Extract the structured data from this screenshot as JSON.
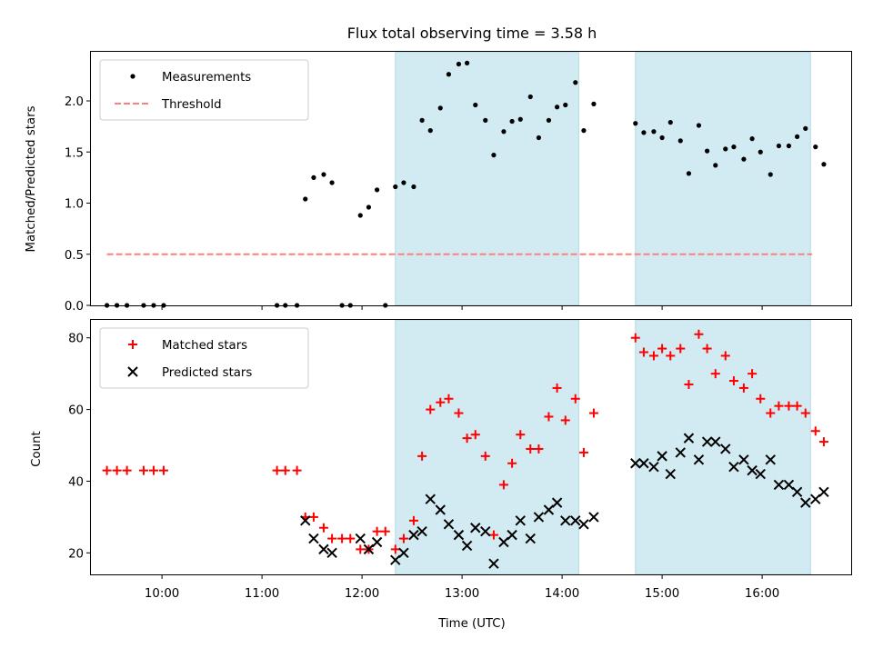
{
  "chart_data": [
    {
      "type": "scatter",
      "title": "Flux total observing time = 3.58 h",
      "xlabel": "",
      "ylabel": "Matched/Predicted stars",
      "ylim": [
        0,
        2.48
      ],
      "xlim_hours": [
        9.29,
        16.89
      ],
      "yticks": [
        {
          "v": 0.0,
          "label": "0.0"
        },
        {
          "v": 0.5,
          "label": "0.5"
        },
        {
          "v": 1.0,
          "label": "1.0"
        },
        {
          "v": 1.5,
          "label": "1.5"
        },
        {
          "v": 2.0,
          "label": "2.0"
        }
      ],
      "legend": {
        "placement": "upper-left",
        "entries": [
          {
            "label": "Measurements",
            "marker": "dot",
            "color": "#000000"
          },
          {
            "label": "Threshold",
            "marker": "dashed-line",
            "color": "#ff7f7f"
          }
        ]
      },
      "threshold": {
        "y": 0.5,
        "x_start": "09:27",
        "x_end": "16:30",
        "color": "#ff7f7f"
      },
      "shaded_regions": [
        {
          "start": "12:20",
          "end": "14:10",
          "color": "#add8e6"
        },
        {
          "start": "14:44",
          "end": "16:29",
          "color": "#add8e6"
        }
      ],
      "series": [
        {
          "name": "Measurements",
          "color": "#000000",
          "points": [
            {
              "x": "09:27",
              "y": 0
            },
            {
              "x": "09:33",
              "y": 0
            },
            {
              "x": "09:39",
              "y": 0
            },
            {
              "x": "09:49",
              "y": 0
            },
            {
              "x": "09:55",
              "y": 0
            },
            {
              "x": "10:01",
              "y": 0
            },
            {
              "x": "11:09",
              "y": 0
            },
            {
              "x": "11:14",
              "y": 0
            },
            {
              "x": "11:21",
              "y": 0
            },
            {
              "x": "11:26",
              "y": 1.04
            },
            {
              "x": "11:31",
              "y": 1.25
            },
            {
              "x": "11:37",
              "y": 1.28
            },
            {
              "x": "11:42",
              "y": 1.2
            },
            {
              "x": "11:48",
              "y": 0
            },
            {
              "x": "11:53",
              "y": 0
            },
            {
              "x": "11:59",
              "y": 0.88
            },
            {
              "x": "12:04",
              "y": 0.96
            },
            {
              "x": "12:09",
              "y": 1.13
            },
            {
              "x": "12:14",
              "y": 0
            },
            {
              "x": "12:20",
              "y": 1.16
            },
            {
              "x": "12:25",
              "y": 1.2
            },
            {
              "x": "12:31",
              "y": 1.16
            },
            {
              "x": "12:36",
              "y": 1.81
            },
            {
              "x": "12:41",
              "y": 1.71
            },
            {
              "x": "12:47",
              "y": 1.93
            },
            {
              "x": "12:52",
              "y": 2.26
            },
            {
              "x": "12:58",
              "y": 2.36
            },
            {
              "x": "13:03",
              "y": 2.37
            },
            {
              "x": "13:08",
              "y": 1.96
            },
            {
              "x": "13:14",
              "y": 1.81
            },
            {
              "x": "13:19",
              "y": 1.47
            },
            {
              "x": "13:25",
              "y": 1.7
            },
            {
              "x": "13:30",
              "y": 1.8
            },
            {
              "x": "13:35",
              "y": 1.82
            },
            {
              "x": "13:41",
              "y": 2.04
            },
            {
              "x": "13:46",
              "y": 1.64
            },
            {
              "x": "13:52",
              "y": 1.81
            },
            {
              "x": "13:57",
              "y": 1.94
            },
            {
              "x": "14:02",
              "y": 1.96
            },
            {
              "x": "14:08",
              "y": 2.18
            },
            {
              "x": "14:13",
              "y": 1.71
            },
            {
              "x": "14:19",
              "y": 1.97
            },
            {
              "x": "14:44",
              "y": 1.78
            },
            {
              "x": "14:49",
              "y": 1.69
            },
            {
              "x": "14:55",
              "y": 1.7
            },
            {
              "x": "15:00",
              "y": 1.64
            },
            {
              "x": "15:05",
              "y": 1.79
            },
            {
              "x": "15:11",
              "y": 1.61
            },
            {
              "x": "15:16",
              "y": 1.29
            },
            {
              "x": "15:22",
              "y": 1.76
            },
            {
              "x": "15:27",
              "y": 1.51
            },
            {
              "x": "15:32",
              "y": 1.37
            },
            {
              "x": "15:38",
              "y": 1.53
            },
            {
              "x": "15:43",
              "y": 1.55
            },
            {
              "x": "15:49",
              "y": 1.43
            },
            {
              "x": "15:54",
              "y": 1.63
            },
            {
              "x": "15:59",
              "y": 1.5
            },
            {
              "x": "16:05",
              "y": 1.28
            },
            {
              "x": "16:10",
              "y": 1.56
            },
            {
              "x": "16:16",
              "y": 1.56
            },
            {
              "x": "16:21",
              "y": 1.65
            },
            {
              "x": "16:26",
              "y": 1.73
            },
            {
              "x": "16:32",
              "y": 1.55
            },
            {
              "x": "16:37",
              "y": 1.38
            }
          ]
        }
      ]
    },
    {
      "type": "scatter",
      "title": "",
      "xlabel": "Time (UTC)",
      "ylabel": "Count",
      "ylim": [
        14,
        85
      ],
      "xlim_hours": [
        9.29,
        16.89
      ],
      "xticks": [
        {
          "v": "10:00",
          "label": "10:00"
        },
        {
          "v": "11:00",
          "label": "11:00"
        },
        {
          "v": "12:00",
          "label": "12:00"
        },
        {
          "v": "13:00",
          "label": "13:00"
        },
        {
          "v": "14:00",
          "label": "14:00"
        },
        {
          "v": "15:00",
          "label": "15:00"
        },
        {
          "v": "16:00",
          "label": "16:00"
        }
      ],
      "yticks": [
        {
          "v": 20,
          "label": "20"
        },
        {
          "v": 40,
          "label": "40"
        },
        {
          "v": 60,
          "label": "60"
        },
        {
          "v": 80,
          "label": "80"
        }
      ],
      "legend": {
        "placement": "upper-left",
        "entries": [
          {
            "label": "Matched stars",
            "marker": "plus",
            "color": "#ff0000"
          },
          {
            "label": "Predicted stars",
            "marker": "cross",
            "color": "#000000"
          }
        ]
      },
      "shaded_regions": [
        {
          "start": "12:20",
          "end": "14:10",
          "color": "#add8e6"
        },
        {
          "start": "14:44",
          "end": "16:29",
          "color": "#add8e6"
        }
      ],
      "series": [
        {
          "name": "Matched stars",
          "marker": "plus",
          "color": "#ff0000",
          "points": [
            {
              "x": "09:27",
              "y": 43
            },
            {
              "x": "09:33",
              "y": 43
            },
            {
              "x": "09:39",
              "y": 43
            },
            {
              "x": "09:49",
              "y": 43
            },
            {
              "x": "09:55",
              "y": 43
            },
            {
              "x": "10:01",
              "y": 43
            },
            {
              "x": "11:09",
              "y": 43
            },
            {
              "x": "11:14",
              "y": 43
            },
            {
              "x": "11:21",
              "y": 43
            },
            {
              "x": "11:26",
              "y": 30
            },
            {
              "x": "11:31",
              "y": 30
            },
            {
              "x": "11:37",
              "y": 27
            },
            {
              "x": "11:42",
              "y": 24
            },
            {
              "x": "11:48",
              "y": 24
            },
            {
              "x": "11:53",
              "y": 24
            },
            {
              "x": "11:59",
              "y": 21
            },
            {
              "x": "12:04",
              "y": 21
            },
            {
              "x": "12:09",
              "y": 26
            },
            {
              "x": "12:14",
              "y": 26
            },
            {
              "x": "12:20",
              "y": 21
            },
            {
              "x": "12:25",
              "y": 24
            },
            {
              "x": "12:31",
              "y": 29
            },
            {
              "x": "12:36",
              "y": 47
            },
            {
              "x": "12:41",
              "y": 60
            },
            {
              "x": "12:47",
              "y": 62
            },
            {
              "x": "12:52",
              "y": 63
            },
            {
              "x": "12:58",
              "y": 59
            },
            {
              "x": "13:03",
              "y": 52
            },
            {
              "x": "13:08",
              "y": 53
            },
            {
              "x": "13:14",
              "y": 47
            },
            {
              "x": "13:19",
              "y": 25
            },
            {
              "x": "13:25",
              "y": 39
            },
            {
              "x": "13:30",
              "y": 45
            },
            {
              "x": "13:35",
              "y": 53
            },
            {
              "x": "13:41",
              "y": 49
            },
            {
              "x": "13:46",
              "y": 49
            },
            {
              "x": "13:52",
              "y": 58
            },
            {
              "x": "13:57",
              "y": 66
            },
            {
              "x": "14:02",
              "y": 57
            },
            {
              "x": "14:08",
              "y": 63
            },
            {
              "x": "14:13",
              "y": 48
            },
            {
              "x": "14:19",
              "y": 59
            },
            {
              "x": "14:44",
              "y": 80
            },
            {
              "x": "14:49",
              "y": 76
            },
            {
              "x": "14:55",
              "y": 75
            },
            {
              "x": "15:00",
              "y": 77
            },
            {
              "x": "15:05",
              "y": 75
            },
            {
              "x": "15:11",
              "y": 77
            },
            {
              "x": "15:16",
              "y": 67
            },
            {
              "x": "15:22",
              "y": 81
            },
            {
              "x": "15:27",
              "y": 77
            },
            {
              "x": "15:32",
              "y": 70
            },
            {
              "x": "15:38",
              "y": 75
            },
            {
              "x": "15:43",
              "y": 68
            },
            {
              "x": "15:49",
              "y": 66
            },
            {
              "x": "15:54",
              "y": 70
            },
            {
              "x": "15:59",
              "y": 63
            },
            {
              "x": "16:05",
              "y": 59
            },
            {
              "x": "16:10",
              "y": 61
            },
            {
              "x": "16:16",
              "y": 61
            },
            {
              "x": "16:21",
              "y": 61
            },
            {
              "x": "16:26",
              "y": 59
            },
            {
              "x": "16:32",
              "y": 54
            },
            {
              "x": "16:37",
              "y": 51
            }
          ]
        },
        {
          "name": "Predicted stars",
          "marker": "cross",
          "color": "#000000",
          "points": [
            {
              "x": "11:26",
              "y": 29
            },
            {
              "x": "11:31",
              "y": 24
            },
            {
              "x": "11:37",
              "y": 21
            },
            {
              "x": "11:42",
              "y": 20
            },
            {
              "x": "11:59",
              "y": 24
            },
            {
              "x": "12:04",
              "y": 21
            },
            {
              "x": "12:09",
              "y": 23
            },
            {
              "x": "12:20",
              "y": 18
            },
            {
              "x": "12:25",
              "y": 20
            },
            {
              "x": "12:31",
              "y": 25
            },
            {
              "x": "12:36",
              "y": 26
            },
            {
              "x": "12:41",
              "y": 35
            },
            {
              "x": "12:47",
              "y": 32
            },
            {
              "x": "12:52",
              "y": 28
            },
            {
              "x": "12:58",
              "y": 25
            },
            {
              "x": "13:03",
              "y": 22
            },
            {
              "x": "13:08",
              "y": 27
            },
            {
              "x": "13:14",
              "y": 26
            },
            {
              "x": "13:19",
              "y": 17
            },
            {
              "x": "13:25",
              "y": 23
            },
            {
              "x": "13:30",
              "y": 25
            },
            {
              "x": "13:35",
              "y": 29
            },
            {
              "x": "13:41",
              "y": 24
            },
            {
              "x": "13:46",
              "y": 30
            },
            {
              "x": "13:52",
              "y": 32
            },
            {
              "x": "13:57",
              "y": 34
            },
            {
              "x": "14:02",
              "y": 29
            },
            {
              "x": "14:08",
              "y": 29
            },
            {
              "x": "14:13",
              "y": 28
            },
            {
              "x": "14:19",
              "y": 30
            },
            {
              "x": "14:44",
              "y": 45
            },
            {
              "x": "14:49",
              "y": 45
            },
            {
              "x": "14:55",
              "y": 44
            },
            {
              "x": "15:00",
              "y": 47
            },
            {
              "x": "15:05",
              "y": 42
            },
            {
              "x": "15:11",
              "y": 48
            },
            {
              "x": "15:16",
              "y": 52
            },
            {
              "x": "15:22",
              "y": 46
            },
            {
              "x": "15:27",
              "y": 51
            },
            {
              "x": "15:32",
              "y": 51
            },
            {
              "x": "15:38",
              "y": 49
            },
            {
              "x": "15:43",
              "y": 44
            },
            {
              "x": "15:49",
              "y": 46
            },
            {
              "x": "15:54",
              "y": 43
            },
            {
              "x": "15:59",
              "y": 42
            },
            {
              "x": "16:05",
              "y": 46
            },
            {
              "x": "16:10",
              "y": 39
            },
            {
              "x": "16:16",
              "y": 39
            },
            {
              "x": "16:21",
              "y": 37
            },
            {
              "x": "16:26",
              "y": 34
            },
            {
              "x": "16:32",
              "y": 35
            },
            {
              "x": "16:37",
              "y": 37
            }
          ]
        }
      ]
    }
  ]
}
